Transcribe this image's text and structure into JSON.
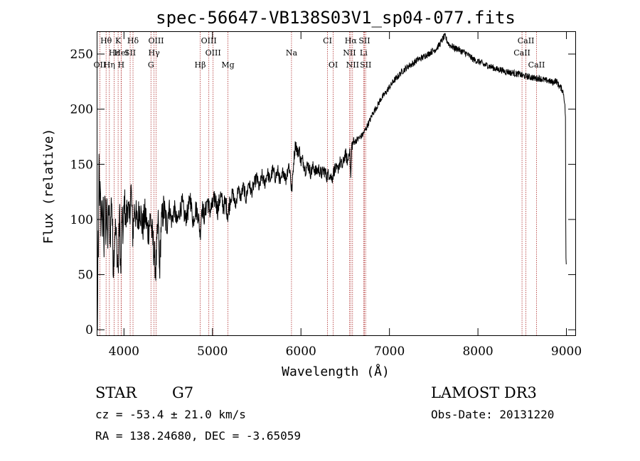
{
  "chart_data": {
    "type": "line",
    "title": "spec-56647-VB138S03V1_sp04-077.fits",
    "xlabel": "Wavelength (Å)",
    "ylabel": "Flux (relative)",
    "xlim": [
      3700,
      9100
    ],
    "ylim": [
      -5,
      270
    ],
    "xticks": [
      4000,
      5000,
      6000,
      7000,
      8000,
      9000
    ],
    "yticks": [
      0,
      50,
      100,
      150,
      200,
      250
    ],
    "spectral_lines": [
      {
        "name": "Hθ",
        "wavelength": 3798,
        "row": 0
      },
      {
        "name": "K",
        "wavelength": 3934,
        "row": 0
      },
      {
        "name": "Hδ",
        "wavelength": 4102,
        "row": 0
      },
      {
        "name": "OIII",
        "wavelength": 4363,
        "row": 0
      },
      {
        "name": "OIII",
        "wavelength": 4959,
        "row": 0
      },
      {
        "name": "CI",
        "wavelength": 6300,
        "row": 0
      },
      {
        "name": "Hα",
        "wavelength": 6563,
        "row": 0
      },
      {
        "name": "SII",
        "wavelength": 6717,
        "row": 0
      },
      {
        "name": "CaII",
        "wavelength": 8542,
        "row": 0
      },
      {
        "name": "Hε",
        "wavelength": 3889,
        "row": 1
      },
      {
        "name": "HeI",
        "wavelength": 3970,
        "row": 1
      },
      {
        "name": "SII",
        "wavelength": 4070,
        "row": 1
      },
      {
        "name": "Hγ",
        "wavelength": 4340,
        "row": 1
      },
      {
        "name": "OIII",
        "wavelength": 5007,
        "row": 1
      },
      {
        "name": "Na",
        "wavelength": 5893,
        "row": 1
      },
      {
        "name": "NII",
        "wavelength": 6548,
        "row": 1
      },
      {
        "name": "Li",
        "wavelength": 6708,
        "row": 1
      },
      {
        "name": "CaII",
        "wavelength": 8498,
        "row": 1
      },
      {
        "name": "OII",
        "wavelength": 3727,
        "row": 2
      },
      {
        "name": "Hη",
        "wavelength": 3835,
        "row": 2
      },
      {
        "name": "H",
        "wavelength": 3968,
        "row": 2
      },
      {
        "name": "G",
        "wavelength": 4305,
        "row": 2
      },
      {
        "name": "Hβ",
        "wavelength": 4861,
        "row": 2
      },
      {
        "name": "Mg",
        "wavelength": 5175,
        "row": 2
      },
      {
        "name": "OI",
        "wavelength": 6364,
        "row": 2
      },
      {
        "name": "NII",
        "wavelength": 6583,
        "row": 2
      },
      {
        "name": "SII",
        "wavelength": 6731,
        "row": 2
      },
      {
        "name": "CaII",
        "wavelength": 8662,
        "row": 2
      }
    ],
    "series": [
      {
        "name": "flux",
        "anchors": [
          [
            3700,
            0
          ],
          [
            3702,
            20
          ],
          [
            3708,
            100
          ],
          [
            3712,
            60
          ],
          [
            3718,
            170
          ],
          [
            3725,
            95
          ],
          [
            3732,
            140
          ],
          [
            3740,
            88
          ],
          [
            3748,
            125
          ],
          [
            3756,
            80
          ],
          [
            3765,
            118
          ],
          [
            3775,
            70
          ],
          [
            3785,
            130
          ],
          [
            3795,
            85
          ],
          [
            3805,
            115
          ],
          [
            3815,
            78
          ],
          [
            3830,
            112
          ],
          [
            3845,
            82
          ],
          [
            3860,
            125
          ],
          [
            3880,
            55
          ],
          [
            3900,
            95
          ],
          [
            3920,
            75
          ],
          [
            3935,
            50
          ],
          [
            3950,
            110
          ],
          [
            3965,
            42
          ],
          [
            3975,
            105
          ],
          [
            3990,
            85
          ],
          [
            4005,
            120
          ],
          [
            4020,
            95
          ],
          [
            4040,
            115
          ],
          [
            4060,
            98
          ],
          [
            4080,
            128
          ],
          [
            4100,
            85
          ],
          [
            4120,
            112
          ],
          [
            4150,
            96
          ],
          [
            4180,
            112
          ],
          [
            4210,
            92
          ],
          [
            4240,
            105
          ],
          [
            4270,
            88
          ],
          [
            4300,
            102
          ],
          [
            4320,
            85
          ],
          [
            4340,
            70
          ],
          [
            4360,
            55
          ],
          [
            4375,
            80
          ],
          [
            4390,
            100
          ],
          [
            4400,
            48
          ],
          [
            4420,
            95
          ],
          [
            4450,
            110
          ],
          [
            4480,
            95
          ],
          [
            4510,
            112
          ],
          [
            4540,
            98
          ],
          [
            4570,
            110
          ],
          [
            4600,
            96
          ],
          [
            4630,
            108
          ],
          [
            4660,
            115
          ],
          [
            4690,
            100
          ],
          [
            4720,
            106
          ],
          [
            4750,
            120
          ],
          [
            4780,
            98
          ],
          [
            4810,
            110
          ],
          [
            4840,
            104
          ],
          [
            4861,
            86
          ],
          [
            4880,
            112
          ],
          [
            4910,
            102
          ],
          [
            4940,
            118
          ],
          [
            4970,
            108
          ],
          [
            5000,
            112
          ],
          [
            5030,
            120
          ],
          [
            5060,
            108
          ],
          [
            5090,
            122
          ],
          [
            5120,
            112
          ],
          [
            5150,
            115
          ],
          [
            5175,
            104
          ],
          [
            5200,
            118
          ],
          [
            5230,
            124
          ],
          [
            5260,
            112
          ],
          [
            5290,
            128
          ],
          [
            5320,
            120
          ],
          [
            5350,
            130
          ],
          [
            5380,
            118
          ],
          [
            5410,
            134
          ],
          [
            5440,
            124
          ],
          [
            5470,
            132
          ],
          [
            5500,
            138
          ],
          [
            5530,
            128
          ],
          [
            5560,
            140
          ],
          [
            5590,
            132
          ],
          [
            5620,
            143
          ],
          [
            5650,
            135
          ],
          [
            5680,
            145
          ],
          [
            5710,
            138
          ],
          [
            5740,
            144
          ],
          [
            5770,
            132
          ],
          [
            5800,
            145
          ],
          [
            5830,
            136
          ],
          [
            5860,
            150
          ],
          [
            5880,
            142
          ],
          [
            5893,
            125
          ],
          [
            5900,
            130
          ],
          [
            5920,
            155
          ],
          [
            5940,
            170
          ],
          [
            5960,
            160
          ],
          [
            5980,
            164
          ],
          [
            6000,
            152
          ],
          [
            6020,
            154
          ],
          [
            6050,
            145
          ],
          [
            6080,
            150
          ],
          [
            6110,
            142
          ],
          [
            6140,
            148
          ],
          [
            6170,
            143
          ],
          [
            6200,
            146
          ],
          [
            6230,
            141
          ],
          [
            6260,
            145
          ],
          [
            6290,
            139
          ],
          [
            6320,
            142
          ],
          [
            6350,
            137
          ],
          [
            6380,
            146
          ],
          [
            6410,
            144
          ],
          [
            6440,
            152
          ],
          [
            6470,
            148
          ],
          [
            6500,
            160
          ],
          [
            6530,
            152
          ],
          [
            6550,
            166
          ],
          [
            6563,
            135
          ],
          [
            6575,
            168
          ],
          [
            6600,
            170
          ],
          [
            6630,
            172
          ],
          [
            6660,
            174
          ],
          [
            6690,
            176
          ],
          [
            6720,
            180
          ],
          [
            6750,
            185
          ],
          [
            6780,
            190
          ],
          [
            6810,
            196
          ],
          [
            6840,
            200
          ],
          [
            6870,
            204
          ],
          [
            6900,
            209
          ],
          [
            6930,
            212
          ],
          [
            6960,
            215
          ],
          [
            6990,
            219
          ],
          [
            7020,
            222
          ],
          [
            7050,
            226
          ],
          [
            7080,
            228
          ],
          [
            7110,
            231
          ],
          [
            7140,
            234
          ],
          [
            7170,
            236
          ],
          [
            7200,
            238
          ],
          [
            7230,
            240
          ],
          [
            7260,
            241
          ],
          [
            7290,
            243
          ],
          [
            7320,
            245
          ],
          [
            7350,
            246
          ],
          [
            7380,
            247
          ],
          [
            7410,
            249
          ],
          [
            7440,
            250
          ],
          [
            7470,
            252
          ],
          [
            7500,
            253
          ],
          [
            7530,
            255
          ],
          [
            7560,
            258
          ],
          [
            7590,
            262
          ],
          [
            7610,
            265
          ],
          [
            7630,
            266
          ],
          [
            7650,
            262
          ],
          [
            7680,
            258
          ],
          [
            7710,
            257
          ],
          [
            7740,
            255
          ],
          [
            7770,
            255
          ],
          [
            7800,
            253
          ],
          [
            7830,
            252
          ],
          [
            7860,
            251
          ],
          [
            7890,
            249
          ],
          [
            7920,
            247
          ],
          [
            7950,
            245
          ],
          [
            7980,
            244
          ],
          [
            8010,
            243
          ],
          [
            8040,
            242
          ],
          [
            8070,
            240
          ],
          [
            8100,
            240
          ],
          [
            8130,
            239
          ],
          [
            8160,
            238
          ],
          [
            8190,
            237
          ],
          [
            8220,
            236
          ],
          [
            8250,
            236
          ],
          [
            8280,
            235
          ],
          [
            8310,
            234
          ],
          [
            8340,
            234
          ],
          [
            8370,
            233
          ],
          [
            8400,
            233
          ],
          [
            8430,
            232
          ],
          [
            8460,
            232
          ],
          [
            8490,
            231
          ],
          [
            8520,
            230
          ],
          [
            8550,
            230
          ],
          [
            8580,
            229
          ],
          [
            8610,
            229
          ],
          [
            8640,
            228
          ],
          [
            8670,
            228
          ],
          [
            8700,
            228
          ],
          [
            8730,
            227
          ],
          [
            8760,
            226
          ],
          [
            8790,
            226
          ],
          [
            8820,
            225
          ],
          [
            8850,
            224
          ],
          [
            8870,
            226
          ],
          [
            8890,
            225
          ],
          [
            8910,
            222
          ],
          [
            8930,
            220
          ],
          [
            8950,
            218
          ],
          [
            8965,
            215
          ],
          [
            8975,
            210
          ],
          [
            8985,
            200
          ],
          [
            8990,
            190
          ],
          [
            8993,
            50
          ],
          [
            8995,
            65
          ],
          [
            8997,
            60
          ],
          [
            9000,
            58
          ]
        ]
      }
    ]
  },
  "info": {
    "object_class": "STAR",
    "subclass": "G7",
    "survey": "LAMOST DR3",
    "redshift_text": "cz = -53.4 ± 21.0 km/s",
    "obs_date_text": "Obs-Date: 20131220",
    "coords_text": "RA = 138.24680, DEC =  -3.65059"
  },
  "colors": {
    "line": "#000000",
    "marker": "#b03030",
    "axes": "#000000"
  }
}
